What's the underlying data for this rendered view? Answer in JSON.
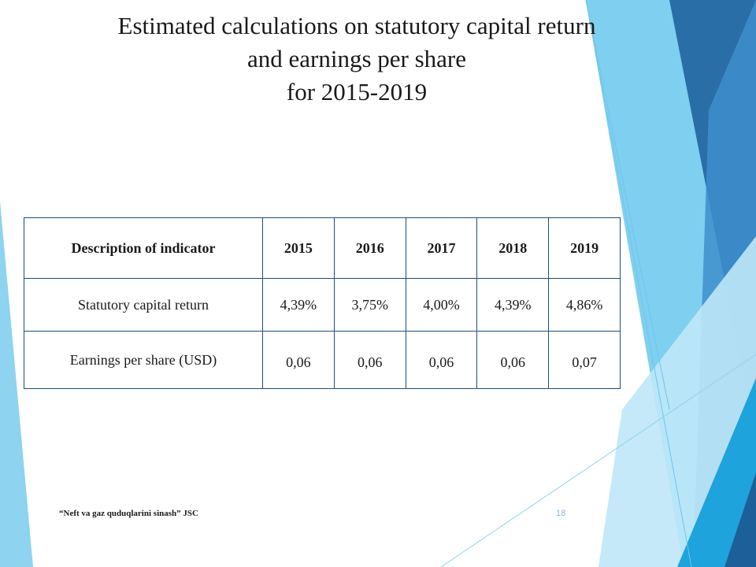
{
  "slide": {
    "title_lines": [
      "Estimated calculations on statutory capital return",
      "and earnings per share",
      "for 2015-2019"
    ],
    "table": {
      "header": {
        "description": "Description of indicator",
        "years": [
          "2015",
          "2016",
          "2017",
          "2018",
          "2019"
        ]
      },
      "rows": [
        {
          "description": "Statutory capital return",
          "values": [
            "4,39%",
            "3,75%",
            "4,00%",
            "4,39%",
            "4,86%"
          ]
        },
        {
          "description": "Earnings per share (USD)",
          "values": [
            "0,06",
            "0,06",
            "0,06",
            "0,06",
            "0,07"
          ]
        }
      ]
    },
    "footer_text": "“Neft va gaz quduqlarini sinash” JSC",
    "page_number": "18"
  },
  "colors": {
    "table_border": "#1f4e79",
    "deco_light_blue": "#8ed3ef",
    "deco_mid_blue": "#3e9ad6",
    "deco_dark_blue": "#2a6ea8",
    "deco_cyan": "#1ea3dc"
  }
}
